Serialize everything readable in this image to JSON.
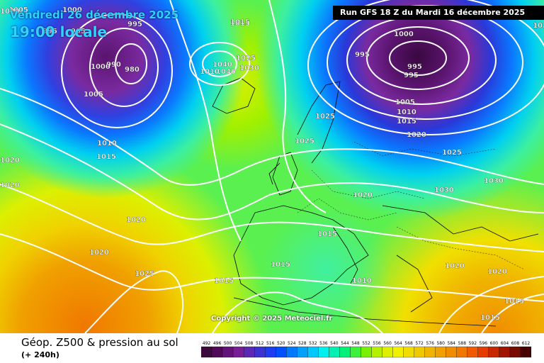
{
  "header": {
    "date_label": "Vendredi 26 décembre 2025",
    "time_label": "19:00 locale",
    "run_label": "Run GFS 18 Z du Mardi 16 décembre 2025"
  },
  "map": {
    "copyright": "Copyright © 2025 Meteociel.fr",
    "pressure_labels": [
      {
        "text": "1005"
      },
      {
        "text": "1000"
      },
      {
        "text": "995"
      },
      {
        "text": "995"
      },
      {
        "text": "995"
      },
      {
        "text": "990"
      },
      {
        "text": "980"
      },
      {
        "text": "1000"
      },
      {
        "text": "1005"
      },
      {
        "text": "1010"
      },
      {
        "text": "1015"
      },
      {
        "text": "1020"
      },
      {
        "text": "1020"
      },
      {
        "text": "1020"
      },
      {
        "text": "1020"
      },
      {
        "text": "1025"
      },
      {
        "text": "1020"
      },
      {
        "text": "1015"
      },
      {
        "text": "1040"
      },
      {
        "text": "1045"
      },
      {
        "text": "1010"
      },
      {
        "text": "1025"
      },
      {
        "text": "1030"
      },
      {
        "text": "1025"
      },
      {
        "text": "1025"
      },
      {
        "text": "1015"
      },
      {
        "text": "1015"
      },
      {
        "text": "1010"
      },
      {
        "text": "1020"
      },
      {
        "text": "1030"
      },
      {
        "text": "1030"
      },
      {
        "text": "1020"
      },
      {
        "text": "1020"
      },
      {
        "text": "1015"
      },
      {
        "text": "1015"
      },
      {
        "text": "1015"
      },
      {
        "text": "1010"
      },
      {
        "text": "1000"
      },
      {
        "text": "995"
      },
      {
        "text": "995"
      },
      {
        "text": "995"
      },
      {
        "text": "1005"
      },
      {
        "text": "1010"
      },
      {
        "text": "1015"
      },
      {
        "text": "1020"
      },
      {
        "text": "1025"
      },
      {
        "text": "1020"
      },
      {
        "text": "1015"
      },
      {
        "text": "1020"
      }
    ]
  },
  "footer": {
    "title": "Géop. Z500 & pression au sol",
    "subtitle": "(+ 240h)"
  },
  "legend": {
    "values": [
      "492",
      "496",
      "500",
      "504",
      "508",
      "512",
      "516",
      "520",
      "524",
      "528",
      "532",
      "536",
      "540",
      "544",
      "548",
      "552",
      "556",
      "560",
      "564",
      "568",
      "572",
      "576",
      "580",
      "584",
      "588",
      "592",
      "596",
      "600",
      "604",
      "608",
      "612"
    ],
    "colors": [
      "#3c0a3c",
      "#500a5a",
      "#641478",
      "#781e96",
      "#5a28b4",
      "#3c32d2",
      "#1e3cf0",
      "#0050ff",
      "#0078ff",
      "#00a0ff",
      "#00c8ff",
      "#00f0f0",
      "#00f0b4",
      "#00f078",
      "#3cf03c",
      "#78f000",
      "#b4f000",
      "#dcf000",
      "#f0f000",
      "#f0dc00",
      "#f0c800",
      "#f0b400",
      "#f0a000",
      "#f08c00",
      "#f07800",
      "#f05a00",
      "#e63c00",
      "#c82800",
      "#a01400",
      "#780a00",
      "#460000"
    ]
  }
}
